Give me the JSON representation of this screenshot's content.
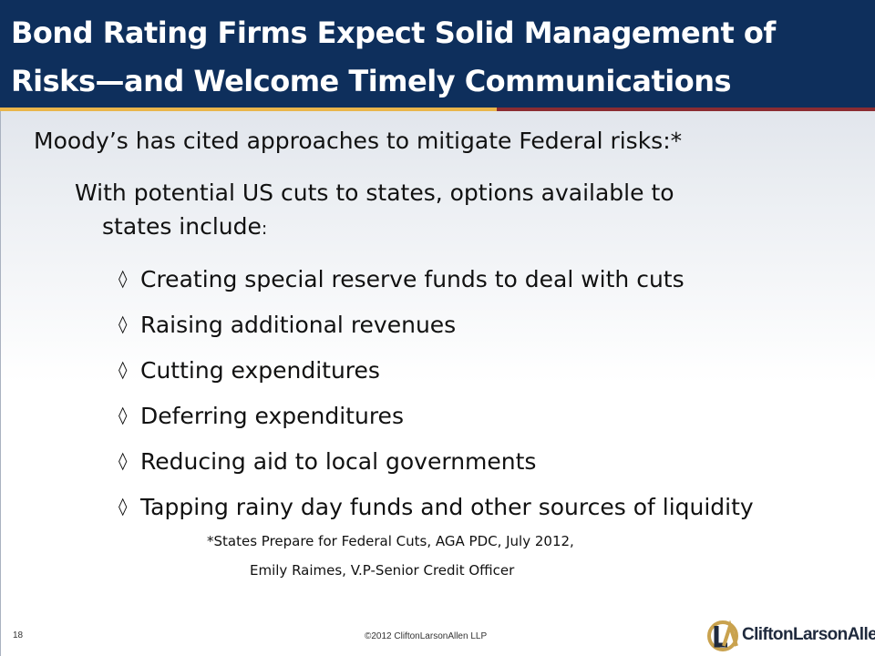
{
  "slide": {
    "title_line1": "Bond Rating Firms Expect Solid Management of",
    "title_line2": "Risks—and Welcome Timely Communications",
    "intro": "Moody’s  has cited approaches to mitigate Federal risks:*",
    "sub_line1": "With potential US cuts to states, options available to",
    "sub_line2": "states include",
    "sub_colon": ":",
    "bullet_marker": "◊",
    "bullets": [
      "Creating special reserve funds to deal with cuts",
      "Raising additional revenues",
      "Cutting expenditures",
      "Deferring expenditures",
      "Reducing aid to local governments",
      "Tapping rainy day funds and other sources of liquidity"
    ],
    "citation_line1": "*States Prepare for Federal Cuts, AGA  PDC, July 2012,",
    "citation_line2": "Emily  Raimes,  V.P-Senior Credit Officer"
  },
  "footer": {
    "page_number": "18",
    "copyright": "©2012 CliftonLarsonAllen LLP",
    "logo_text": "CliftonLarsonAllen"
  },
  "colors": {
    "title_bar": "#0e2f5c",
    "accent_gold": "#e9b54a",
    "accent_red": "#8b2c32",
    "logo_gold": "#c9a24e"
  }
}
